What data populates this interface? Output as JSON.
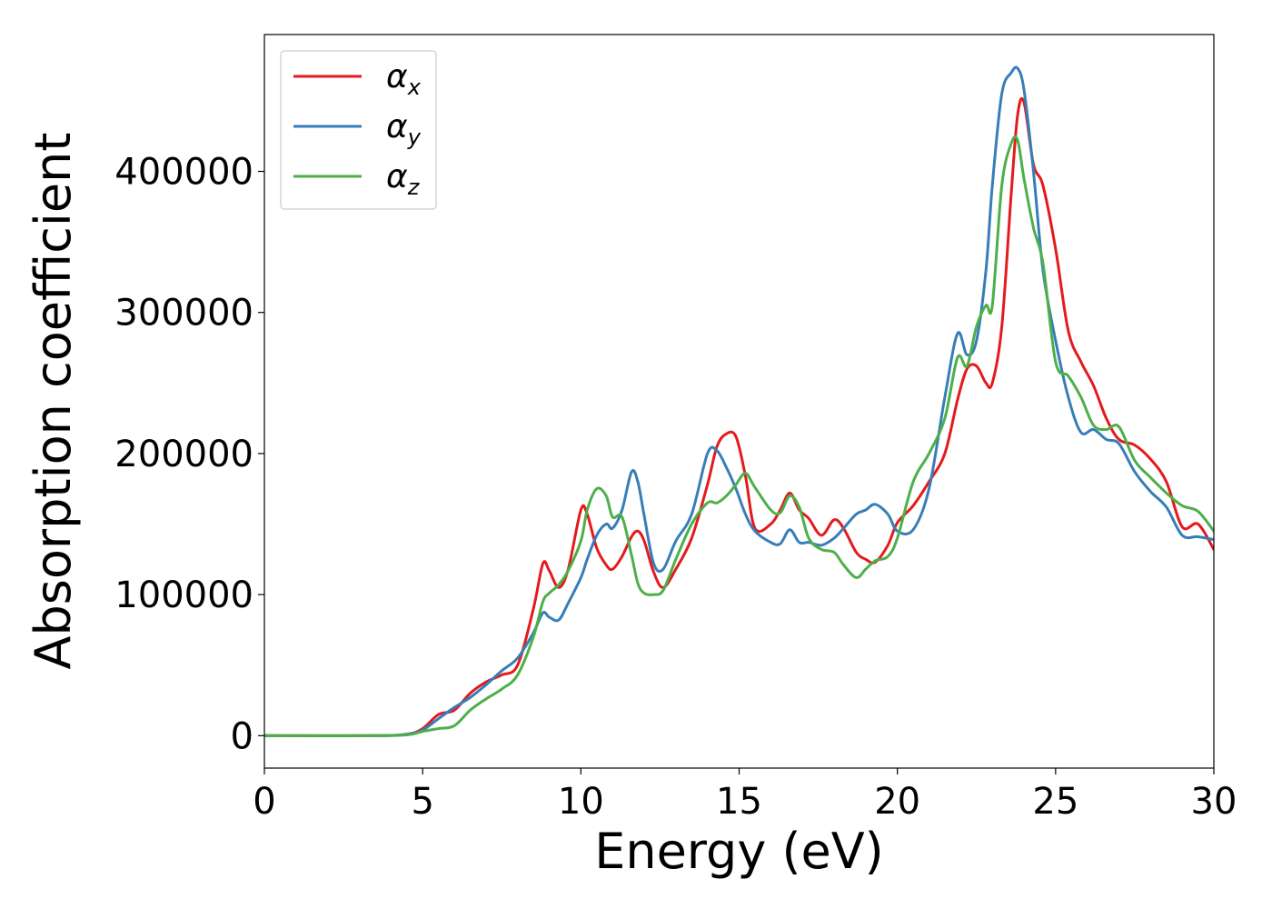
{
  "chart_data": {
    "type": "line",
    "title": "",
    "xlabel": "Energy (eV)",
    "ylabel": "Absorption coefficient",
    "xlim": [
      0,
      30
    ],
    "ylim": [
      -23000,
      497000
    ],
    "x_ticks": [
      0,
      5,
      10,
      15,
      20,
      25,
      30
    ],
    "y_ticks": [
      0,
      100000,
      200000,
      300000,
      400000
    ],
    "grid": false,
    "legend_position": "top-left",
    "x": [
      0,
      3.5,
      4.5,
      5.0,
      5.5,
      6.0,
      6.5,
      7.0,
      7.5,
      8.0,
      8.5,
      8.8,
      9.0,
      9.3,
      9.6,
      10.0,
      10.2,
      10.5,
      10.8,
      11.0,
      11.3,
      11.6,
      11.8,
      12.0,
      12.3,
      12.6,
      13.0,
      13.5,
      14.0,
      14.3,
      14.6,
      14.9,
      15.2,
      15.5,
      16.0,
      16.3,
      16.6,
      16.9,
      17.2,
      17.6,
      18.0,
      18.3,
      18.7,
      19.0,
      19.3,
      19.7,
      20.0,
      20.5,
      21.0,
      21.5,
      21.9,
      22.2,
      22.5,
      22.8,
      23.0,
      23.3,
      23.6,
      23.8,
      24.0,
      24.3,
      24.6,
      25.0,
      25.4,
      25.8,
      26.2,
      26.6,
      27.0,
      27.5,
      28.0,
      28.5,
      29.0,
      29.5,
      30.0
    ],
    "series": [
      {
        "name": "αx",
        "color": "#e41a1c",
        "values": [
          0,
          0,
          1000,
          5000,
          15000,
          18000,
          30000,
          38000,
          43000,
          50000,
          90000,
          122000,
          117000,
          105000,
          118000,
          160000,
          157000,
          133000,
          121000,
          118000,
          127000,
          141000,
          145000,
          138000,
          116000,
          105000,
          118000,
          140000,
          178000,
          205000,
          214000,
          212000,
          184000,
          147000,
          150000,
          160000,
          172000,
          160000,
          154000,
          142000,
          153000,
          147000,
          130000,
          125000,
          123000,
          135000,
          151000,
          163000,
          180000,
          200000,
          238000,
          260000,
          262000,
          250000,
          250000,
          290000,
          385000,
          440000,
          449000,
          405000,
          390000,
          345000,
          287000,
          265000,
          248000,
          225000,
          210000,
          206000,
          196000,
          180000,
          148000,
          150000,
          132000
        ]
      },
      {
        "name": "αy",
        "color": "#377eb8",
        "values": [
          0,
          0,
          1000,
          4000,
          12000,
          20000,
          27000,
          36000,
          46000,
          55000,
          73000,
          87000,
          84000,
          82000,
          94000,
          112000,
          125000,
          142000,
          150000,
          147000,
          160000,
          187000,
          180000,
          156000,
          122000,
          118000,
          138000,
          157000,
          200000,
          202000,
          190000,
          175000,
          157000,
          145000,
          137000,
          136000,
          146000,
          137000,
          137000,
          135000,
          140000,
          147000,
          157000,
          160000,
          164000,
          157000,
          145000,
          146000,
          175000,
          240000,
          285000,
          270000,
          280000,
          330000,
          390000,
          455000,
          470000,
          473000,
          458000,
          400000,
          330000,
          280000,
          240000,
          215000,
          217000,
          210000,
          207000,
          187000,
          173000,
          162000,
          142000,
          141000,
          139000
        ]
      },
      {
        "name": "αz",
        "color": "#4daf4a",
        "values": [
          0,
          0,
          500,
          3000,
          5000,
          7000,
          18000,
          26000,
          33000,
          43000,
          70000,
          95000,
          101000,
          107000,
          117000,
          138000,
          160000,
          175000,
          170000,
          155000,
          155000,
          128000,
          108000,
          101000,
          100000,
          103000,
          125000,
          150000,
          165000,
          165000,
          170000,
          178000,
          186000,
          176000,
          160000,
          158000,
          170000,
          162000,
          140000,
          132000,
          130000,
          121000,
          112000,
          118000,
          124000,
          127000,
          140000,
          180000,
          200000,
          225000,
          268000,
          262000,
          290000,
          305000,
          305000,
          390000,
          420000,
          422000,
          395000,
          360000,
          335000,
          265000,
          255000,
          240000,
          220000,
          217000,
          219000,
          195000,
          183000,
          172000,
          163000,
          159000,
          145000
        ]
      }
    ]
  }
}
